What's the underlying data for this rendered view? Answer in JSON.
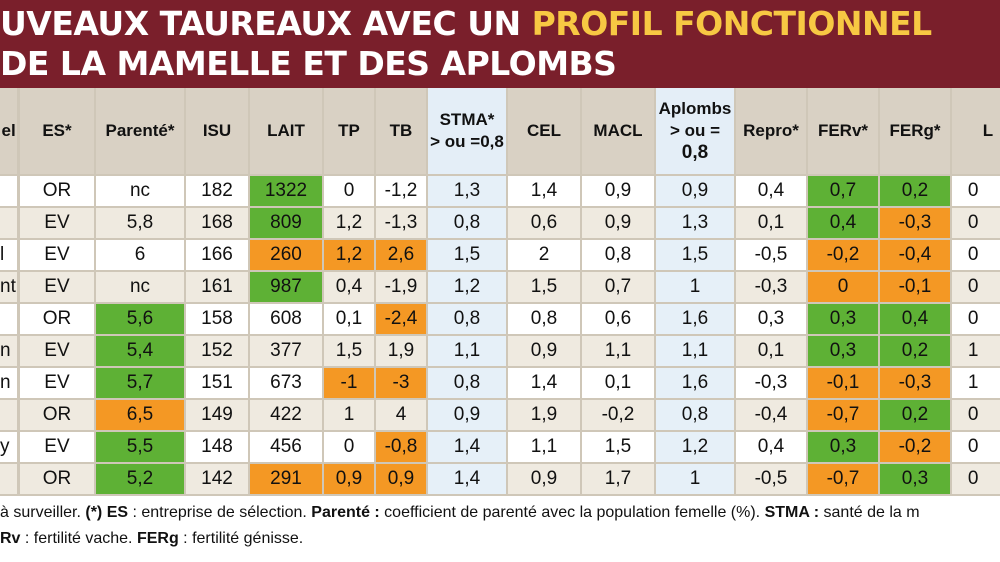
{
  "title": {
    "line1_part1": "UVEAUX TAUREAUX AVEC UN ",
    "line1_highlight": "PROFIL FONCTIONNEL",
    "line2": "DE LA MAMELLE ET DES APLOMBS"
  },
  "colors": {
    "header_bg": "#7a1f2b",
    "highlight": "#f7c843",
    "green": "#5eb135",
    "orange": "#f49824",
    "white": "#ffffff",
    "beige": "#efeae0",
    "blue_light": "#e6f0f8"
  },
  "table": {
    "columns": [
      {
        "key": "c0",
        "lines": [
          "",
          "",
          "el"
        ]
      },
      {
        "key": "es",
        "lines": [
          "ES*"
        ]
      },
      {
        "key": "parente",
        "lines": [
          "Parenté*"
        ]
      },
      {
        "key": "isu",
        "lines": [
          "ISU"
        ]
      },
      {
        "key": "lait",
        "lines": [
          "LAIT"
        ]
      },
      {
        "key": "tp",
        "lines": [
          "TP"
        ]
      },
      {
        "key": "tb",
        "lines": [
          "TB"
        ]
      },
      {
        "key": "stma",
        "lines": [
          "STMA*",
          "> ou =0,8"
        ]
      },
      {
        "key": "cel",
        "lines": [
          "CEL"
        ]
      },
      {
        "key": "macl",
        "lines": [
          "MACL"
        ]
      },
      {
        "key": "aplombs",
        "lines": [
          "Aplombs",
          "> ou =",
          "0,8"
        ]
      },
      {
        "key": "repro",
        "lines": [
          "Repro*"
        ]
      },
      {
        "key": "ferv",
        "lines": [
          "FERv*"
        ]
      },
      {
        "key": "ferg",
        "lines": [
          "FERg*"
        ]
      },
      {
        "key": "last",
        "lines": [
          "L"
        ]
      }
    ],
    "rows": [
      {
        "c0": "",
        "es": "OR",
        "parente": "nc",
        "isu": "182",
        "lait": "1322",
        "tp": "0",
        "tb": "-1,2",
        "stma": "1,3",
        "cel": "1,4",
        "macl": "0,9",
        "aplombs": "0,9",
        "repro": "0,4",
        "ferv": "0,7",
        "ferg": "0,2",
        "last": "0",
        "hl": {
          "lait": "green",
          "ferv": "green",
          "ferg": "green"
        }
      },
      {
        "c0": "",
        "es": "EV",
        "parente": "5,8",
        "isu": "168",
        "lait": "809",
        "tp": "1,2",
        "tb": "-1,3",
        "stma": "0,8",
        "cel": "0,6",
        "macl": "0,9",
        "aplombs": "1,3",
        "repro": "0,1",
        "ferv": "0,4",
        "ferg": "-0,3",
        "last": "0",
        "hl": {
          "lait": "green",
          "ferv": "green",
          "ferg": "orange"
        }
      },
      {
        "c0": "l",
        "es": "EV",
        "parente": "6",
        "isu": "166",
        "lait": "260",
        "tp": "1,2",
        "tb": "2,6",
        "stma": "1,5",
        "cel": "2",
        "macl": "0,8",
        "aplombs": "1,5",
        "repro": "-0,5",
        "ferv": "-0,2",
        "ferg": "-0,4",
        "last": "0",
        "hl": {
          "lait": "orange",
          "tp": "orange",
          "tb": "orange",
          "ferv": "orange",
          "ferg": "orange"
        }
      },
      {
        "c0": "nt",
        "es": "EV",
        "parente": "nc",
        "isu": "161",
        "lait": "987",
        "tp": "0,4",
        "tb": "-1,9",
        "stma": "1,2",
        "cel": "1,5",
        "macl": "0,7",
        "aplombs": "1",
        "repro": "-0,3",
        "ferv": "0",
        "ferg": "-0,1",
        "last": "0",
        "hl": {
          "lait": "green",
          "ferv": "orange",
          "ferg": "orange"
        }
      },
      {
        "c0": "",
        "es": "OR",
        "parente": "5,6",
        "isu": "158",
        "lait": "608",
        "tp": "0,1",
        "tb": "-2,4",
        "stma": "0,8",
        "cel": "0,8",
        "macl": "0,6",
        "aplombs": "1,6",
        "repro": "0,3",
        "ferv": "0,3",
        "ferg": "0,4",
        "last": "0",
        "hl": {
          "parente": "green",
          "tb": "orange",
          "ferv": "green",
          "ferg": "green"
        }
      },
      {
        "c0": "n",
        "es": "EV",
        "parente": "5,4",
        "isu": "152",
        "lait": "377",
        "tp": "1,5",
        "tb": "1,9",
        "stma": "1,1",
        "cel": "0,9",
        "macl": "1,1",
        "aplombs": "1,1",
        "repro": "0,1",
        "ferv": "0,3",
        "ferg": "0,2",
        "last": "1",
        "hl": {
          "parente": "green",
          "ferv": "green",
          "ferg": "green"
        }
      },
      {
        "c0": "n",
        "es": "EV",
        "parente": "5,7",
        "isu": "151",
        "lait": "673",
        "tp": "-1",
        "tb": "-3",
        "stma": "0,8",
        "cel": "1,4",
        "macl": "0,1",
        "aplombs": "1,6",
        "repro": "-0,3",
        "ferv": "-0,1",
        "ferg": "-0,3",
        "last": "1",
        "hl": {
          "parente": "green",
          "tp": "orange",
          "tb": "orange",
          "ferv": "orange",
          "ferg": "orange"
        }
      },
      {
        "c0": "",
        "es": "OR",
        "parente": "6,5",
        "isu": "149",
        "lait": "422",
        "tp": "1",
        "tb": "4",
        "stma": "0,9",
        "cel": "1,9",
        "macl": "-0,2",
        "aplombs": "0,8",
        "repro": "-0,4",
        "ferv": "-0,7",
        "ferg": "0,2",
        "last": "0",
        "hl": {
          "parente": "orange",
          "ferv": "orange",
          "ferg": "green"
        }
      },
      {
        "c0": "y",
        "es": "EV",
        "parente": "5,5",
        "isu": "148",
        "lait": "456",
        "tp": "0",
        "tb": "-0,8",
        "stma": "1,4",
        "cel": "1,1",
        "macl": "1,5",
        "aplombs": "1,2",
        "repro": "0,4",
        "ferv": "0,3",
        "ferg": "-0,2",
        "last": "0",
        "hl": {
          "parente": "green",
          "tb": "orange",
          "ferv": "green",
          "ferg": "orange"
        }
      },
      {
        "c0": "",
        "es": "OR",
        "parente": "5,2",
        "isu": "142",
        "lait": "291",
        "tp": "0,9",
        "tb": "0,9",
        "stma": "1,4",
        "cel": "0,9",
        "macl": "1,7",
        "aplombs": "1",
        "repro": "-0,5",
        "ferv": "-0,7",
        "ferg": "0,3",
        "last": "0",
        "hl": {
          "parente": "green",
          "lait": "orange",
          "tp": "orange",
          "tb": "orange",
          "ferv": "orange",
          "ferg": "green"
        }
      }
    ]
  },
  "footer": {
    "line1": [
      {
        "t": "à surveiller. ",
        "b": false
      },
      {
        "t": "(*) ES",
        "b": true
      },
      {
        "t": " : entreprise de sélection. ",
        "b": false
      },
      {
        "t": "Parenté :",
        "b": true
      },
      {
        "t": " coefficient de parenté avec la population femelle (%). ",
        "b": false
      },
      {
        "t": "STMA :",
        "b": true
      },
      {
        "t": " santé de la m",
        "b": false
      }
    ],
    "line2": [
      {
        "t": "Rv",
        "b": true
      },
      {
        "t": " : fertilité vache. ",
        "b": false
      },
      {
        "t": "FERg",
        "b": true
      },
      {
        "t": " : fertilité génisse.",
        "b": false
      }
    ]
  }
}
